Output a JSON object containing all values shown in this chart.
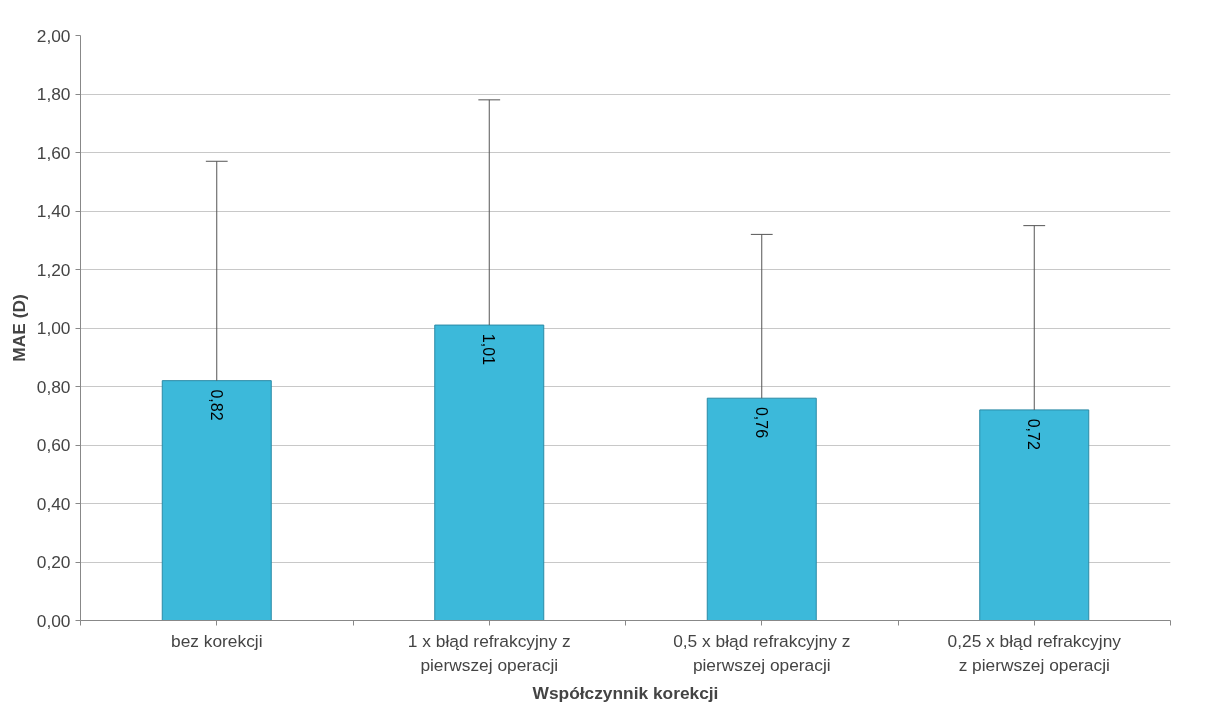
{
  "chart_data": {
    "type": "bar",
    "xlabel": "Współczynnik korekcji",
    "ylabel": "MAE (D)",
    "categories": [
      "bez korekcji",
      "1 x błąd refrakcyjny z pierwszej operacji",
      "0,5 x błąd refrakcyjny z pierwszej operacji",
      "0,25 x błąd refrakcyjny z pierwszej operacji"
    ],
    "values": [
      0.82,
      1.01,
      0.76,
      0.72
    ],
    "errors": [
      [
        0.82,
        1.57
      ],
      [
        1.01,
        1.78
      ],
      [
        0.76,
        1.32
      ],
      [
        0.72,
        1.35
      ]
    ],
    "value_labels": [
      "0,82",
      "1,01",
      "0,76",
      "0,72"
    ],
    "color": "#3cb9da",
    "grid": "y",
    "ylim": [
      0,
      2
    ],
    "yticks": [
      {
        "value": 0,
        "label": "0,00"
      },
      {
        "value": 0.2,
        "label": "0,20"
      },
      {
        "value": 0.4,
        "label": "0,40"
      },
      {
        "value": 0.6,
        "label": "0,60"
      },
      {
        "value": 0.8,
        "label": "0,80"
      },
      {
        "value": 1,
        "label": "1,00"
      },
      {
        "value": 1.2,
        "label": "1,20"
      },
      {
        "value": 1.4,
        "label": "1,40"
      },
      {
        "value": 1.6,
        "label": "1,60"
      },
      {
        "value": 1.8,
        "label": "1,80"
      },
      {
        "value": 2,
        "label": "2,00"
      }
    ]
  }
}
